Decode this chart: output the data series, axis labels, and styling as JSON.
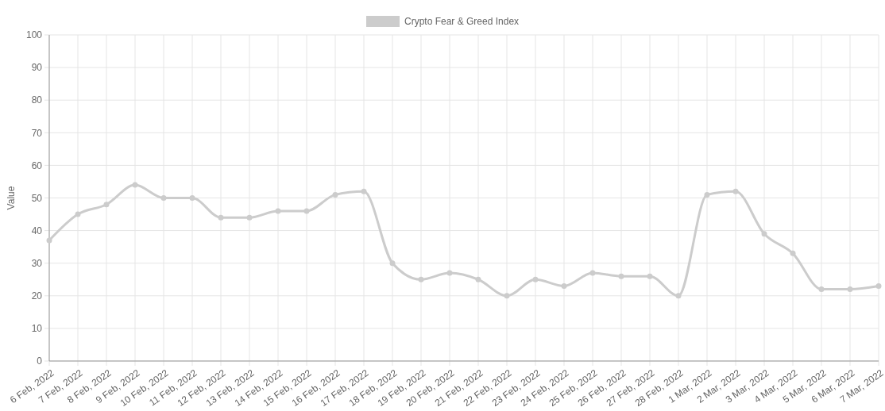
{
  "chart_data": {
    "type": "line",
    "categories": [
      "6 Feb, 2022",
      "7 Feb, 2022",
      "8 Feb, 2022",
      "9 Feb, 2022",
      "10 Feb, 2022",
      "11 Feb, 2022",
      "12 Feb, 2022",
      "13 Feb, 2022",
      "14 Feb, 2022",
      "15 Feb, 2022",
      "16 Feb, 2022",
      "17 Feb, 2022",
      "18 Feb, 2022",
      "19 Feb, 2022",
      "20 Feb, 2022",
      "21 Feb, 2022",
      "22 Feb, 2022",
      "23 Feb, 2022",
      "24 Feb, 2022",
      "25 Feb, 2022",
      "26 Feb, 2022",
      "27 Feb, 2022",
      "28 Feb, 2022",
      "1 Mar, 2022",
      "2 Mar, 2022",
      "3 Mar, 2022",
      "4 Mar, 2022",
      "5 Mar, 2022",
      "6 Mar, 2022",
      "7 Mar, 2022"
    ],
    "series": [
      {
        "name": "Crypto Fear & Greed Index",
        "color": "#cccccc",
        "values": [
          37,
          45,
          48,
          54,
          50,
          50,
          44,
          44,
          46,
          46,
          51,
          52,
          30,
          25,
          27,
          25,
          20,
          25,
          23,
          27,
          26,
          26,
          20,
          51,
          52,
          39,
          33,
          22,
          22,
          23
        ]
      }
    ],
    "ylabel": "Value",
    "ylim": [
      0,
      100
    ],
    "yticks": [
      0,
      10,
      20,
      30,
      40,
      50,
      60,
      70,
      80,
      90,
      100
    ],
    "grid": true,
    "legend": "top",
    "marker": "circle",
    "line_style": "solid"
  }
}
